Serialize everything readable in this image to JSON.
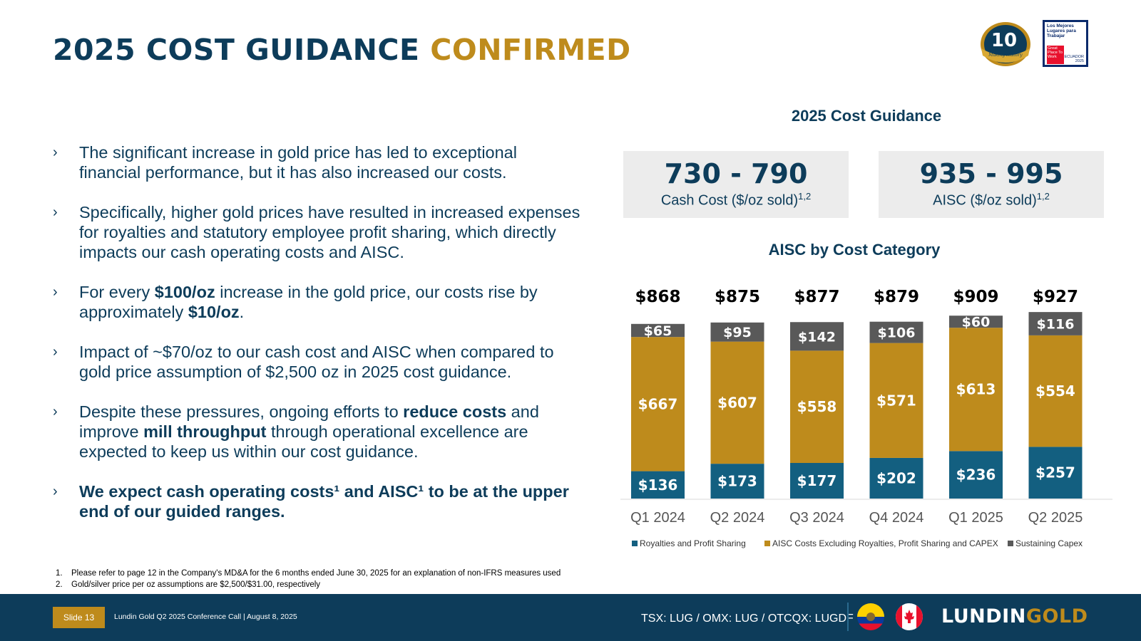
{
  "title": {
    "main": "2025 COST GUIDANCE",
    "accent": "CONFIRMED"
  },
  "badges": {
    "anniversary_number": "10",
    "anniversary_tag": "Making History",
    "gptw_text": "Los Mejores Lugares para Trabajar",
    "gptw_logo": "Great Place To Work",
    "gptw_country": "ECUADOR 2025"
  },
  "bullets": [
    {
      "parts": [
        {
          "t": "The significant increase in gold price has led to exceptional financial performance, but it has also increased our costs.",
          "b": false
        }
      ]
    },
    {
      "parts": [
        {
          "t": "Specifically, higher gold prices have resulted in increased expenses for royalties and statutory employee profit sharing, which directly impacts our cash operating costs and AISC.",
          "b": false
        }
      ]
    },
    {
      "parts": [
        {
          "t": "For every ",
          "b": false
        },
        {
          "t": "$100/oz",
          "b": true
        },
        {
          "t": " increase in the gold price, our costs rise by approximately ",
          "b": false
        },
        {
          "t": "$10/oz",
          "b": true
        },
        {
          "t": ".",
          "b": false
        }
      ]
    },
    {
      "parts": [
        {
          "t": "Impact of ~$70/oz to our cash cost and AISC when compared to gold price assumption of $2,500 oz in 2025 cost guidance.",
          "b": false
        }
      ]
    },
    {
      "parts": [
        {
          "t": "Despite these pressures, ongoing efforts to ",
          "b": false
        },
        {
          "t": "reduce costs",
          "b": true
        },
        {
          "t": " and improve ",
          "b": false
        },
        {
          "t": "mill throughput",
          "b": true
        },
        {
          "t": " through operational excellence are expected to keep us within our cost guidance.",
          "b": false
        }
      ]
    },
    {
      "parts": [
        {
          "t": "We expect cash operating costs¹ and AISC¹ to be at the upper end of our guided ranges.",
          "b": true
        }
      ]
    }
  ],
  "bullet_marker": "›",
  "footnotes": [
    {
      "num": "1.",
      "text": "Please refer to page 12 in the Company's MD&A for the 6 months ended June 30, 2025 for an explanation of non-IFRS measures used"
    },
    {
      "num": "2.",
      "text": "Gold/silver price per oz assumptions are $2,500/$31.00, respectively"
    }
  ],
  "guidance": {
    "title": "2025 Cost Guidance",
    "cash_cost": {
      "range": "730 - 790",
      "label": "Cash Cost ($/oz sold)",
      "sup": "1,2"
    },
    "aisc": {
      "range": "935 - 995",
      "label": "AISC ($/oz sold)",
      "sup": "1,2"
    }
  },
  "chart_title": "AISC by Cost Category",
  "chart_data": {
    "type": "bar",
    "stacked": true,
    "categories": [
      "Q1 2024",
      "Q2 2024",
      "Q3 2024",
      "Q4 2024",
      "Q1 2025",
      "Q2 2025"
    ],
    "series": [
      {
        "name": "Royalties and Profit Sharing",
        "values": [
          136,
          173,
          177,
          202,
          236,
          257
        ],
        "color": "#135f80"
      },
      {
        "name": "AISC Costs Excluding Royalties, Profit Sharing and CAPEX",
        "values": [
          667,
          607,
          558,
          571,
          613,
          554
        ],
        "color": "#be8b1c"
      },
      {
        "name": "Sustaining Capex",
        "values": [
          65,
          95,
          142,
          106,
          60,
          116
        ],
        "color": "#595959"
      }
    ],
    "totals": [
      "$868",
      "$875",
      "$877",
      "$879",
      "$909",
      "$927"
    ],
    "value_prefix": "$",
    "legend_position": "bottom",
    "grid": false
  },
  "footer": {
    "slide": "Slide 13",
    "conference": "Lundin Gold Q2 2025 Conference Call | August 8, 2025",
    "ticker": "TSX: LUG / OMX: LUG / OTCQX: LUGDF",
    "brand_a": "LUNDIN",
    "brand_b": "GOLD",
    "flags": [
      "ecuador-flag-icon",
      "canada-flag-icon"
    ]
  },
  "colors": {
    "navy": "#0d3c5a",
    "gold": "#be8b1c",
    "teal": "#135f80",
    "grey": "#595959"
  }
}
